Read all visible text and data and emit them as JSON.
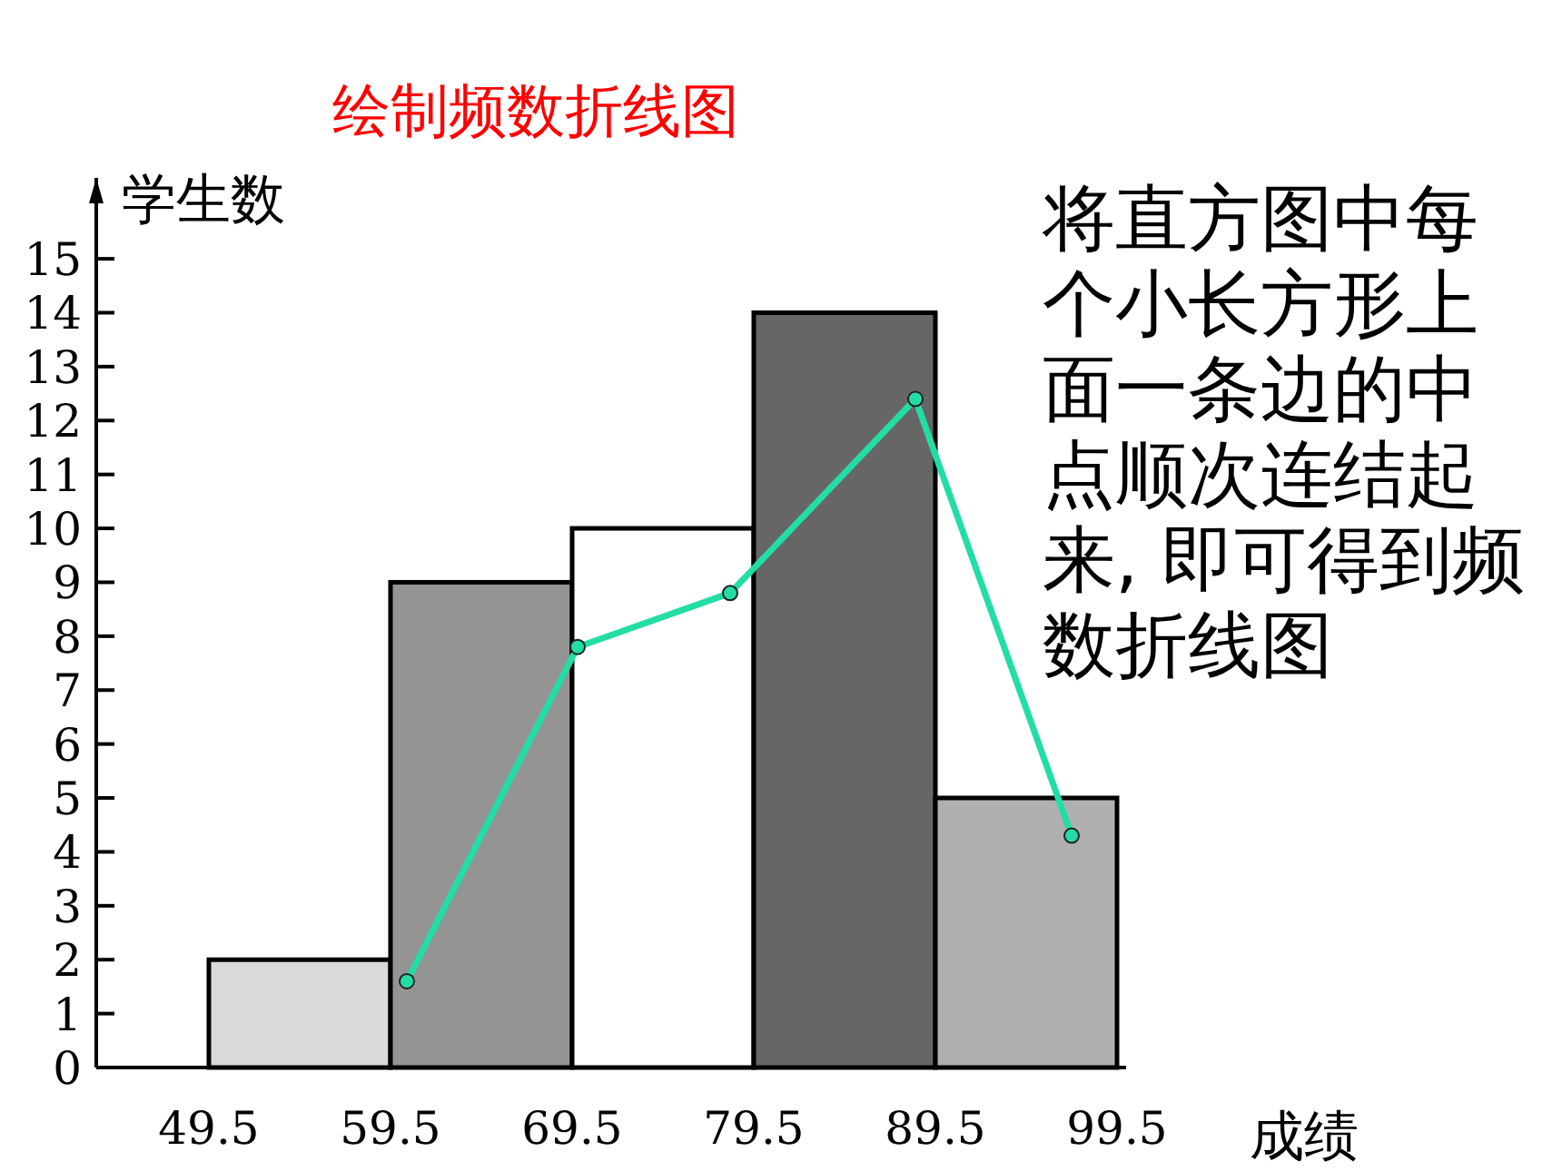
{
  "chart_data": {
    "type": "histogram",
    "title": "绘制频数折线图",
    "xlabel": "成绩",
    "ylabel": "学生数",
    "bins": [
      49.5,
      59.5,
      69.5,
      79.5,
      89.5,
      99.5
    ],
    "values": [
      2,
      9,
      10,
      14,
      5
    ],
    "colors": [
      "#d9d9d9",
      "#949494",
      "#ffffff",
      "#666666",
      "#b0b0b0"
    ],
    "series": [
      {
        "type": "line",
        "color": "#22dda6",
        "marker": "circle",
        "x": [
          60.4,
          69.8,
          78.2,
          88.4,
          97.0
        ],
        "values": [
          1.6,
          7.8,
          8.8,
          12.4,
          4.3
        ]
      }
    ],
    "xlim": [
      43.3,
      100
    ],
    "ylim": [
      0,
      16.5
    ],
    "xticks": [
      49.5,
      59.5,
      69.5,
      79.5,
      89.5,
      99.5
    ],
    "yticks": [
      0,
      1,
      2,
      3,
      4,
      5,
      6,
      7,
      8,
      9,
      10,
      11,
      12,
      13,
      14,
      15
    ],
    "grid": false,
    "annotations": [
      "将直方图中每个小长方形上面一条边的中点顺次连结起来, 即可得到频数折线图"
    ]
  }
}
